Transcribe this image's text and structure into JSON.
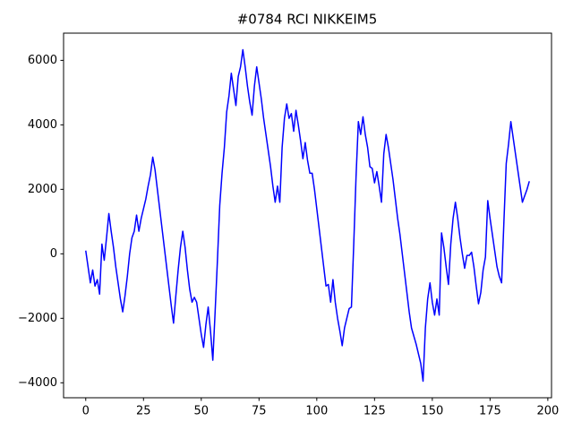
{
  "chart_data": {
    "type": "line",
    "title": "#0784 RCI NIKKEIM5",
    "series": [
      {
        "color": "#0000ff",
        "values": [
          100,
          -400,
          -900,
          -500,
          -1000,
          -800,
          -1250,
          300,
          -200,
          500,
          1250,
          700,
          200,
          -400,
          -900,
          -1400,
          -1800,
          -1300,
          -700,
          0,
          500,
          700,
          1200,
          700,
          1100,
          1400,
          1700,
          2100,
          2450,
          3000,
          2600,
          2000,
          1400,
          800,
          200,
          -400,
          -1000,
          -1600,
          -2150,
          -1300,
          -500,
          200,
          700,
          200,
          -500,
          -1100,
          -1500,
          -1350,
          -1500,
          -2000,
          -2500,
          -2900,
          -2200,
          -1650,
          -2400,
          -3300,
          -1800,
          -200,
          1500,
          2500,
          3300,
          4400,
          4900,
          5600,
          5100,
          4600,
          5500,
          5800,
          6330,
          5800,
          5200,
          4700,
          4300,
          5200,
          5800,
          5300,
          4800,
          4200,
          3700,
          3200,
          2700,
          2100,
          1600,
          2100,
          1600,
          3300,
          4200,
          4650,
          4200,
          4350,
          3800,
          4450,
          4000,
          3500,
          2950,
          3450,
          2900,
          2500,
          2500,
          2000,
          1400,
          800,
          200,
          -400,
          -1000,
          -950,
          -1500,
          -800,
          -1500,
          -2000,
          -2400,
          -2850,
          -2300,
          -2000,
          -1700,
          -1650,
          300,
          2400,
          4100,
          3700,
          4250,
          3700,
          3300,
          2700,
          2650,
          2200,
          2550,
          2100,
          1600,
          3100,
          3700,
          3300,
          2800,
          2300,
          1700,
          1100,
          600,
          0,
          -600,
          -1200,
          -1800,
          -2300,
          -2550,
          -2800,
          -3100,
          -3400,
          -3950,
          -2300,
          -1400,
          -900,
          -1500,
          -1900,
          -1400,
          -1900,
          650,
          200,
          -400,
          -950,
          300,
          1100,
          1600,
          1100,
          500,
          0,
          -450,
          -50,
          -50,
          50,
          -400,
          -1000,
          -1550,
          -1200,
          -500,
          -100,
          1650,
          1100,
          600,
          100,
          -400,
          -700,
          -900,
          1000,
          2800,
          3400,
          4100,
          3600,
          3100,
          2600,
          2100,
          1600,
          1800,
          2000,
          2250
        ]
      }
    ],
    "xlim": [
      -9.6,
      201.6
    ],
    "xticks": [
      0,
      25,
      50,
      75,
      100,
      125,
      150,
      175,
      200
    ],
    "ylim": [
      -4464,
      6844
    ],
    "yticks": [
      {
        "value": -4000,
        "label": "−4000"
      },
      {
        "value": -2000,
        "label": "−2000"
      },
      0,
      2000,
      4000,
      6000
    ],
    "grid": false
  }
}
